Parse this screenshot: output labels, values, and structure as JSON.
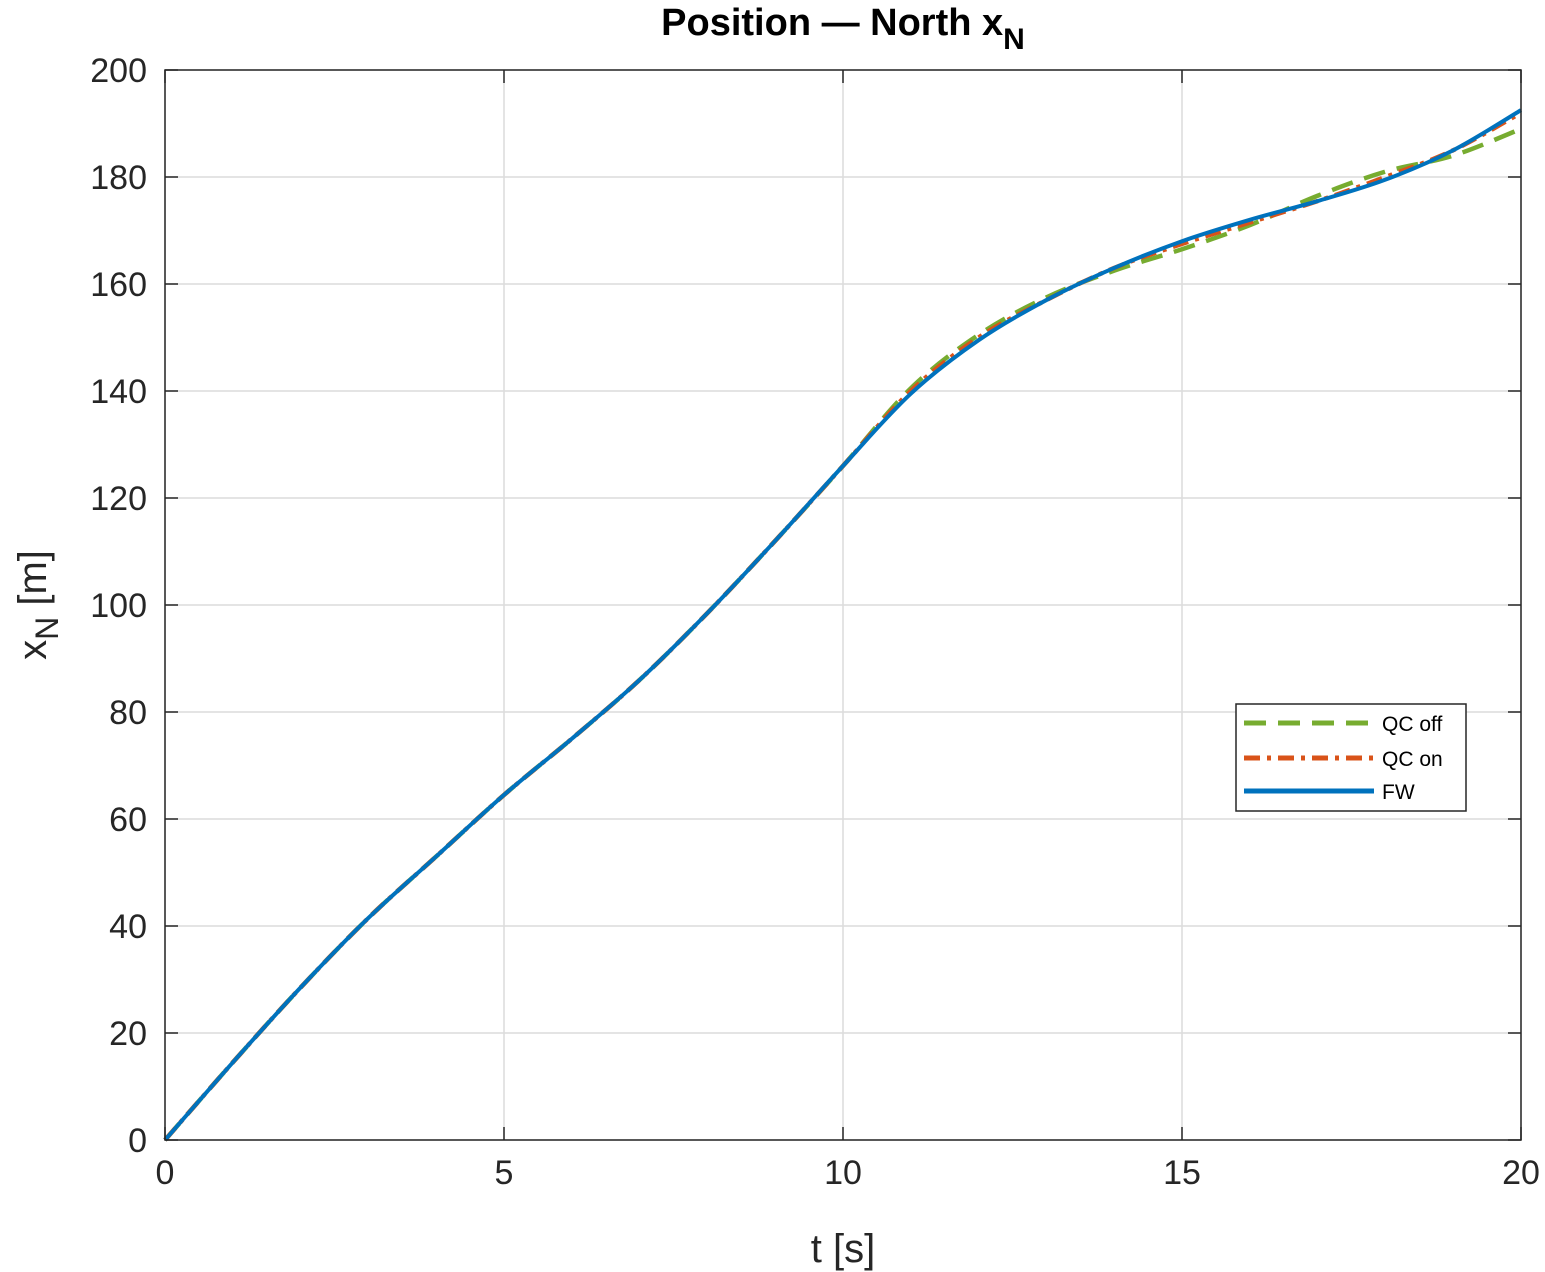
{
  "chart_data": {
    "type": "line",
    "title": "Position — North x",
    "title_subscript": "N",
    "xlabel": "t [s]",
    "ylabel_main": "x",
    "ylabel_subscript": "N",
    "ylabel_unit": " [m]",
    "xlim": [
      0,
      20
    ],
    "ylim": [
      0,
      200
    ],
    "xticks": [
      0,
      5,
      10,
      15,
      20
    ],
    "yticks": [
      0,
      20,
      40,
      60,
      80,
      100,
      120,
      140,
      160,
      180,
      200
    ],
    "xtick_labels": [
      "0",
      "5",
      "10",
      "15",
      "20"
    ],
    "ytick_labels": [
      "0",
      "20",
      "40",
      "60",
      "80",
      "100",
      "120",
      "140",
      "160",
      "180",
      "200"
    ],
    "grid": true,
    "legend_position": "right-middle",
    "series": [
      {
        "name": "QC off",
        "color": "#77AC30",
        "line_style": "dashed",
        "x": [
          0,
          1,
          2,
          3,
          4,
          5,
          6,
          7,
          8,
          9,
          10,
          11,
          12,
          13,
          14,
          15,
          16,
          17,
          18,
          19,
          20
        ],
        "y": [
          0,
          14.5,
          28.5,
          41.5,
          53,
          64.5,
          75,
          86,
          98.5,
          112,
          126,
          140.5,
          150.5,
          157.5,
          162.5,
          166.5,
          171,
          176.5,
          181,
          184,
          189
        ]
      },
      {
        "name": "QC on",
        "color": "#D95319",
        "line_style": "dashdot",
        "x": [
          0,
          1,
          2,
          3,
          4,
          5,
          6,
          7,
          8,
          9,
          10,
          11,
          12,
          13,
          14,
          15,
          16,
          17,
          18,
          19,
          20
        ],
        "y": [
          0,
          14.5,
          28.5,
          41.5,
          53,
          64.5,
          75,
          86,
          98.5,
          112,
          126,
          140,
          150,
          157,
          163,
          167.5,
          171.5,
          175.5,
          180,
          185,
          192
        ]
      },
      {
        "name": "FW",
        "color": "#0072BD",
        "line_style": "solid",
        "x": [
          0,
          1,
          2,
          3,
          4,
          5,
          6,
          7,
          8,
          9,
          10,
          11,
          12,
          13,
          14,
          15,
          16,
          17,
          18,
          19,
          20
        ],
        "y": [
          0,
          14.5,
          28.5,
          41.5,
          53,
          64.5,
          75,
          86,
          98.5,
          112,
          126,
          139.5,
          149.5,
          157,
          163,
          168,
          172,
          175.5,
          179.5,
          185,
          192.5
        ]
      }
    ]
  }
}
